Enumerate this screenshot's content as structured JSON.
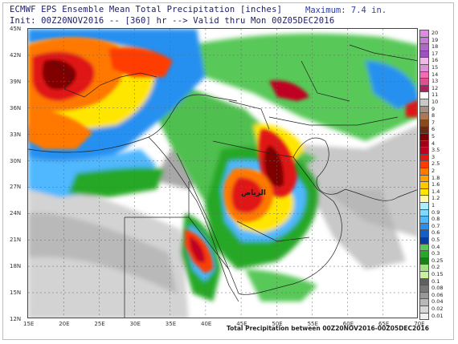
{
  "title_line1": "ECMWF EPS Ensemble Mean Total Precipitation [inches]",
  "title_line2": "Init: 00Z20NOV2016 -- [360] hr --> Valid thru Mon 00Z05DEC2016",
  "maximum": "Maximum: 7.4 in.",
  "footer": "Total Precipitation between 00Z20NOV2016-00Z05DEC2016",
  "city_label": "الرياض",
  "latitude_labels": [
    "45N",
    "42N",
    "39N",
    "36N",
    "33N",
    "30N",
    "27N",
    "24N",
    "21N",
    "18N",
    "15N",
    "12N"
  ],
  "longitude_labels": [
    "15E",
    "20E",
    "25E",
    "30E",
    "35E",
    "40E",
    "45E",
    "50E",
    "55E",
    "60E",
    "65E",
    "70E"
  ],
  "legend": {
    "labels": [
      "20",
      "19",
      "18",
      "17",
      "16",
      "15",
      "14",
      "13",
      "12",
      "11",
      "10",
      "9",
      "8",
      "7",
      "6",
      "5",
      "4",
      "3.5",
      "3",
      "2.5",
      "2",
      "1.8",
      "1.6",
      "1.4",
      "1.2",
      "1",
      "0.9",
      "0.8",
      "0.7",
      "0.6",
      "0.5",
      "0.4",
      "0.3",
      "0.25",
      "0.2",
      "0.15",
      "0.1",
      "0.08",
      "0.06",
      "0.04",
      "0.02",
      "0.01"
    ],
    "colors": [
      "#d98ee0",
      "#c87ad8",
      "#b266cc",
      "#9c52c0",
      "#f0b8e8",
      "#e090d8",
      "#f06eb0",
      "#e05090",
      "#b02060",
      "#ffffff",
      "#c8c8c8",
      "#a89080",
      "#b07850",
      "#8a4a1e",
      "#6a2a14",
      "#800000",
      "#a00018",
      "#c00020",
      "#e01818",
      "#ff3c00",
      "#ff7800",
      "#ffa000",
      "#ffc800",
      "#ffe600",
      "#fffaaa",
      "#a8f0ff",
      "#80d8ff",
      "#50b8ff",
      "#2890f0",
      "#1460c8",
      "#0a3ca0",
      "#58c858",
      "#28a828",
      "#188018",
      "#a0e080",
      "#c8f0a0",
      "#606060",
      "#787878",
      "#989898",
      "#b8b8b8",
      "#d8d8d8",
      "#f0f0f0"
    ]
  }
}
